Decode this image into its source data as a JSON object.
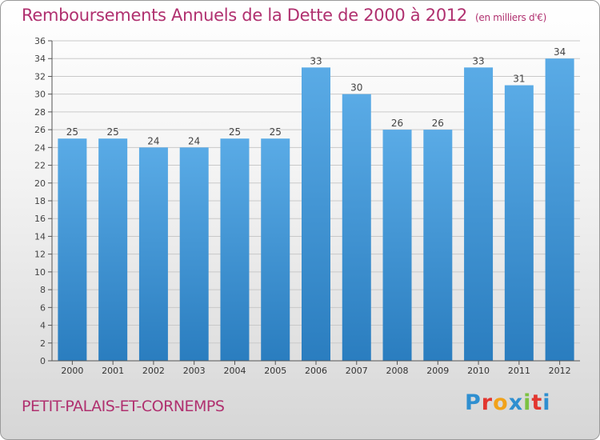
{
  "header": {
    "title": "Remboursements Annuels de la Dette de 2000 à 2012",
    "unit": "(en milliers d'€)"
  },
  "footer": {
    "town": "PETIT-PALAIS-ET-CORNEMPS",
    "logo_letters": [
      "P",
      "r",
      "o",
      "x",
      "i",
      "t",
      "i"
    ],
    "logo_colors": [
      "#2f8fd0",
      "#e2362f",
      "#f1a21a",
      "#2f8fd0",
      "#7cc242",
      "#e2362f",
      "#2f8fd0"
    ]
  },
  "colors": {
    "bar_light": "#5aabe6",
    "bar_dark": "#2a7dbf",
    "grid": "#c9c9c9",
    "title": "#b0306f"
  },
  "chart_data": {
    "type": "bar",
    "title": "Remboursements Annuels de la Dette de 2000 à 2012",
    "unit": "(en milliers d'€)",
    "categories": [
      "2000",
      "2001",
      "2002",
      "2003",
      "2004",
      "2005",
      "2006",
      "2007",
      "2008",
      "2009",
      "2010",
      "2011",
      "2012"
    ],
    "values": [
      25,
      25,
      24,
      24,
      25,
      25,
      33,
      30,
      26,
      26,
      33,
      31,
      34
    ],
    "ylim": [
      0,
      36
    ],
    "yticks": [
      0,
      2,
      4,
      6,
      8,
      10,
      12,
      14,
      16,
      18,
      20,
      22,
      24,
      26,
      28,
      30,
      32,
      34,
      36
    ],
    "grid": true,
    "legend": "none"
  }
}
